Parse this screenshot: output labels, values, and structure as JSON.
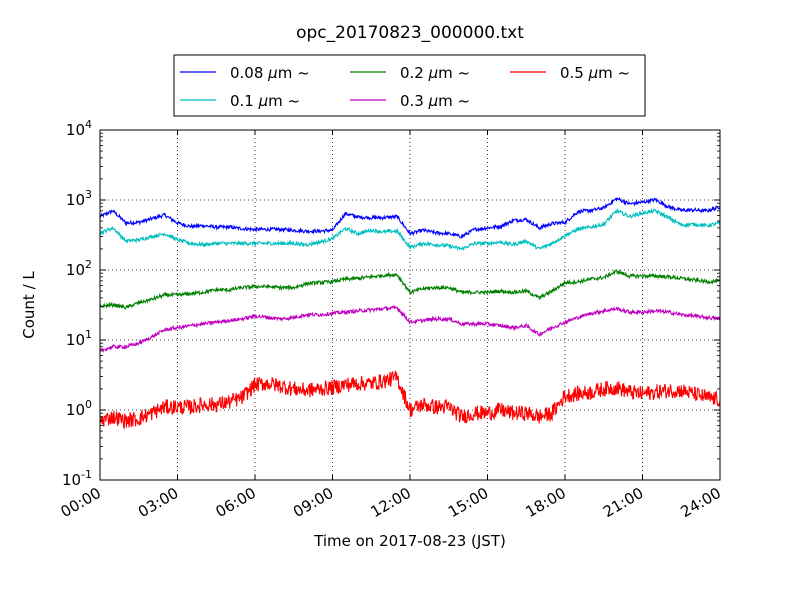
{
  "chart_data": {
    "type": "line",
    "title": "opc_20170823_000000.txt",
    "xlabel": "Time on 2017-08-23 (JST)",
    "ylabel": "Count / L",
    "y_scale": "log",
    "xlim": [
      "00:00",
      "24:00"
    ],
    "ylim": [
      0.1,
      10000
    ],
    "grid": true,
    "legend_position": "top-center",
    "x_ticks": [
      "00:00",
      "03:00",
      "06:00",
      "09:00",
      "12:00",
      "15:00",
      "18:00",
      "21:00",
      "24:00"
    ],
    "y_ticks": [
      {
        "base": "10",
        "exp": "-1"
      },
      {
        "base": "10",
        "exp": "0"
      },
      {
        "base": "10",
        "exp": "1"
      },
      {
        "base": "10",
        "exp": "2"
      },
      {
        "base": "10",
        "exp": "3"
      },
      {
        "base": "10",
        "exp": "4"
      }
    ],
    "x": [
      "00:00",
      "00:30",
      "01:00",
      "01:30",
      "02:00",
      "02:30",
      "03:00",
      "03:30",
      "04:00",
      "04:30",
      "05:00",
      "05:30",
      "06:00",
      "06:30",
      "07:00",
      "07:30",
      "08:00",
      "08:30",
      "09:00",
      "09:30",
      "10:00",
      "10:30",
      "11:00",
      "11:30",
      "12:00",
      "12:30",
      "13:00",
      "13:30",
      "14:00",
      "14:30",
      "15:00",
      "15:30",
      "16:00",
      "16:30",
      "17:00",
      "17:30",
      "18:00",
      "18:30",
      "19:00",
      "19:30",
      "20:00",
      "20:30",
      "21:00",
      "21:30",
      "22:00",
      "22:30",
      "23:00",
      "23:30",
      "24:00"
    ],
    "series": [
      {
        "name": "0.08",
        "color": "#0000ff",
        "values": [
          580,
          700,
          470,
          480,
          540,
          610,
          470,
          420,
          430,
          410,
          410,
          390,
          380,
          380,
          380,
          370,
          360,
          360,
          370,
          640,
          570,
          560,
          560,
          580,
          330,
          370,
          340,
          330,
          300,
          380,
          400,
          420,
          510,
          530,
          400,
          460,
          480,
          680,
          710,
          770,
          1050,
          880,
          930,
          1010,
          800,
          710,
          720,
          700,
          800
        ]
      },
      {
        "name": "0.1",
        "color": "#00bfbf",
        "values": [
          340,
          400,
          260,
          270,
          300,
          330,
          270,
          240,
          230,
          240,
          240,
          240,
          240,
          240,
          240,
          240,
          230,
          250,
          280,
          390,
          330,
          370,
          350,
          360,
          210,
          240,
          230,
          220,
          200,
          240,
          240,
          250,
          230,
          260,
          200,
          240,
          310,
          380,
          410,
          450,
          700,
          580,
          650,
          700,
          560,
          440,
          450,
          430,
          470
        ]
      },
      {
        "name": "0.2",
        "color": "#008000",
        "values": [
          30,
          32,
          29,
          34,
          38,
          44,
          44,
          46,
          48,
          52,
          52,
          56,
          58,
          58,
          56,
          56,
          64,
          66,
          68,
          74,
          76,
          80,
          84,
          86,
          48,
          54,
          56,
          56,
          48,
          48,
          48,
          50,
          48,
          50,
          40,
          50,
          66,
          68,
          74,
          78,
          96,
          82,
          82,
          82,
          80,
          76,
          72,
          68,
          70
        ]
      },
      {
        "name": "0.3",
        "color": "#bf00bf",
        "values": [
          7,
          8,
          8,
          9,
          11,
          14,
          15,
          16,
          17,
          18,
          19,
          20,
          22,
          21,
          20,
          21,
          23,
          23,
          24,
          25,
          26,
          27,
          28,
          29,
          18,
          19,
          20,
          20,
          17,
          17,
          17,
          16,
          15,
          16,
          12,
          15,
          18,
          21,
          24,
          26,
          28,
          25,
          25,
          26,
          25,
          23,
          22,
          21,
          20
        ]
      },
      {
        "name": "0.5",
        "color": "#ff0000",
        "values": [
          0.7,
          0.8,
          0.7,
          0.75,
          0.9,
          1.1,
          1.1,
          1.1,
          1.2,
          1.2,
          1.3,
          1.5,
          2.3,
          2.4,
          2.2,
          2.0,
          1.9,
          2.0,
          2.1,
          2.3,
          2.4,
          2.4,
          2.6,
          2.9,
          1.0,
          1.2,
          1.1,
          1.1,
          0.8,
          0.9,
          0.9,
          1.0,
          0.9,
          0.9,
          0.8,
          0.9,
          1.6,
          1.7,
          1.8,
          2.0,
          2.1,
          1.8,
          1.7,
          1.8,
          1.9,
          1.9,
          1.7,
          1.5,
          1.4
        ]
      }
    ]
  }
}
